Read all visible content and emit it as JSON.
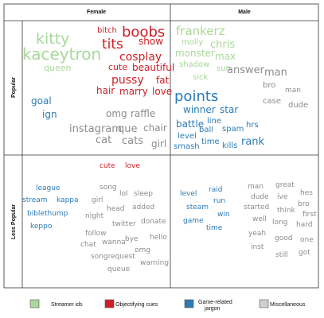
{
  "colors": {
    "streamer_ids": "#a8d89a",
    "objectifying": "#cc1f26",
    "game_jargon": "#2c7bb6",
    "misc": "#8c8c8c",
    "legend_misc_fill": "#cfcfcf",
    "legend_stroke": "#555555"
  },
  "chart_data": {
    "type": "table",
    "columns": [
      "Female",
      "Male"
    ],
    "rows": [
      "Popular",
      "Less Popular"
    ],
    "legend": [
      {
        "category": "streamer_ids",
        "label": "Streamer ids"
      },
      {
        "category": "objectifying",
        "label": "Objectifying cues"
      },
      {
        "category": "game_jargon",
        "label": "Game-related jargon"
      },
      {
        "category": "misc",
        "label": "Miscellaneous"
      }
    ],
    "cells": [
      {
        "row": "Popular",
        "column": "Female",
        "words": [
          {
            "text": "bitch",
            "category": "objectifying"
          },
          {
            "text": "boobs",
            "category": "objectifying"
          },
          {
            "text": "kitty",
            "category": "streamer_ids"
          },
          {
            "text": "tits",
            "category": "objectifying"
          },
          {
            "text": "show",
            "category": "objectifying"
          },
          {
            "text": "kaceytron",
            "category": "streamer_ids"
          },
          {
            "text": "cosplay",
            "category": "objectifying"
          },
          {
            "text": "queen",
            "category": "streamer_ids"
          },
          {
            "text": "cute",
            "category": "objectifying"
          },
          {
            "text": "beautiful",
            "category": "objectifying"
          },
          {
            "text": "pussy",
            "category": "objectifying"
          },
          {
            "text": "fat",
            "category": "objectifying"
          },
          {
            "text": "hair",
            "category": "objectifying"
          },
          {
            "text": "marry",
            "category": "objectifying"
          },
          {
            "text": "love",
            "category": "objectifying"
          },
          {
            "text": "goal",
            "category": "game_jargon"
          },
          {
            "text": "ign",
            "category": "game_jargon"
          },
          {
            "text": "omg",
            "category": "misc"
          },
          {
            "text": "raffle",
            "category": "misc"
          },
          {
            "text": "instagram",
            "category": "misc"
          },
          {
            "text": "que",
            "category": "misc"
          },
          {
            "text": "chair",
            "category": "misc"
          },
          {
            "text": "cat",
            "category": "misc"
          },
          {
            "text": "cats",
            "category": "misc"
          },
          {
            "text": "girl",
            "category": "misc"
          }
        ]
      },
      {
        "row": "Popular",
        "column": "Male",
        "words": [
          {
            "text": "frankerz",
            "category": "streamer_ids"
          },
          {
            "text": "molly",
            "category": "streamer_ids"
          },
          {
            "text": "chris",
            "category": "streamer_ids"
          },
          {
            "text": "monster",
            "category": "streamer_ids"
          },
          {
            "text": "max",
            "category": "streamer_ids"
          },
          {
            "text": "shadow",
            "category": "streamer_ids"
          },
          {
            "text": "sun",
            "category": "streamer_ids"
          },
          {
            "text": "sick",
            "category": "streamer_ids"
          },
          {
            "text": "answer",
            "category": "misc"
          },
          {
            "text": "man",
            "category": "misc"
          },
          {
            "text": "bro",
            "category": "misc"
          },
          {
            "text": "man",
            "category": "misc"
          },
          {
            "text": "case",
            "category": "misc"
          },
          {
            "text": "dude",
            "category": "misc"
          },
          {
            "text": "points",
            "category": "game_jargon"
          },
          {
            "text": "winner",
            "category": "game_jargon"
          },
          {
            "text": "star",
            "category": "game_jargon"
          },
          {
            "text": "battle",
            "category": "game_jargon"
          },
          {
            "text": "line",
            "category": "game_jargon"
          },
          {
            "text": "ball",
            "category": "game_jargon"
          },
          {
            "text": "spam",
            "category": "game_jargon"
          },
          {
            "text": "hrs",
            "category": "game_jargon"
          },
          {
            "text": "level",
            "category": "game_jargon"
          },
          {
            "text": "time",
            "category": "game_jargon"
          },
          {
            "text": "rank",
            "category": "game_jargon"
          },
          {
            "text": "smash",
            "category": "game_jargon"
          },
          {
            "text": "kills",
            "category": "game_jargon"
          }
        ]
      },
      {
        "row": "Less Popular",
        "column": "Female",
        "words": [
          {
            "text": "cute",
            "category": "objectifying"
          },
          {
            "text": "love",
            "category": "objectifying"
          },
          {
            "text": "league",
            "category": "game_jargon"
          },
          {
            "text": "song",
            "category": "misc"
          },
          {
            "text": "lol",
            "category": "misc"
          },
          {
            "text": "sleep",
            "category": "misc"
          },
          {
            "text": "stream",
            "category": "game_jargon"
          },
          {
            "text": "kappa",
            "category": "game_jargon"
          },
          {
            "text": "girl",
            "category": "misc"
          },
          {
            "text": "head",
            "category": "misc"
          },
          {
            "text": "added",
            "category": "misc"
          },
          {
            "text": "biblethump",
            "category": "game_jargon"
          },
          {
            "text": "night",
            "category": "misc"
          },
          {
            "text": "twitter",
            "category": "misc"
          },
          {
            "text": "donate",
            "category": "misc"
          },
          {
            "text": "keppo",
            "category": "game_jargon"
          },
          {
            "text": "follow",
            "category": "misc"
          },
          {
            "text": "hello",
            "category": "misc"
          },
          {
            "text": "chat",
            "category": "misc"
          },
          {
            "text": "wanna",
            "category": "misc"
          },
          {
            "text": "bye",
            "category": "misc"
          },
          {
            "text": "omg",
            "category": "misc"
          },
          {
            "text": "songrequest",
            "category": "misc"
          },
          {
            "text": "warning",
            "category": "misc"
          },
          {
            "text": "queue",
            "category": "misc"
          }
        ]
      },
      {
        "row": "Less Popular",
        "column": "Male",
        "words": [
          {
            "text": "man",
            "category": "misc"
          },
          {
            "text": "great",
            "category": "misc"
          },
          {
            "text": "raid",
            "category": "game_jargon"
          },
          {
            "text": "level",
            "category": "game_jargon"
          },
          {
            "text": "hes",
            "category": "misc"
          },
          {
            "text": "dude",
            "category": "misc"
          },
          {
            "text": "ive",
            "category": "misc"
          },
          {
            "text": "run",
            "category": "game_jargon"
          },
          {
            "text": "bro",
            "category": "misc"
          },
          {
            "text": "steam",
            "category": "game_jargon"
          },
          {
            "text": "started",
            "category": "misc"
          },
          {
            "text": "think",
            "category": "misc"
          },
          {
            "text": "first",
            "category": "misc"
          },
          {
            "text": "win",
            "category": "game_jargon"
          },
          {
            "text": "game",
            "category": "game_jargon"
          },
          {
            "text": "well",
            "category": "misc"
          },
          {
            "text": "long",
            "category": "misc"
          },
          {
            "text": "hard",
            "category": "misc"
          },
          {
            "text": "time",
            "category": "game_jargon"
          },
          {
            "text": "yeah",
            "category": "misc"
          },
          {
            "text": "good",
            "category": "misc"
          },
          {
            "text": "one",
            "category": "misc"
          },
          {
            "text": "inst",
            "category": "misc"
          },
          {
            "text": "still",
            "category": "misc"
          },
          {
            "text": "got",
            "category": "misc"
          }
        ]
      }
    ]
  }
}
